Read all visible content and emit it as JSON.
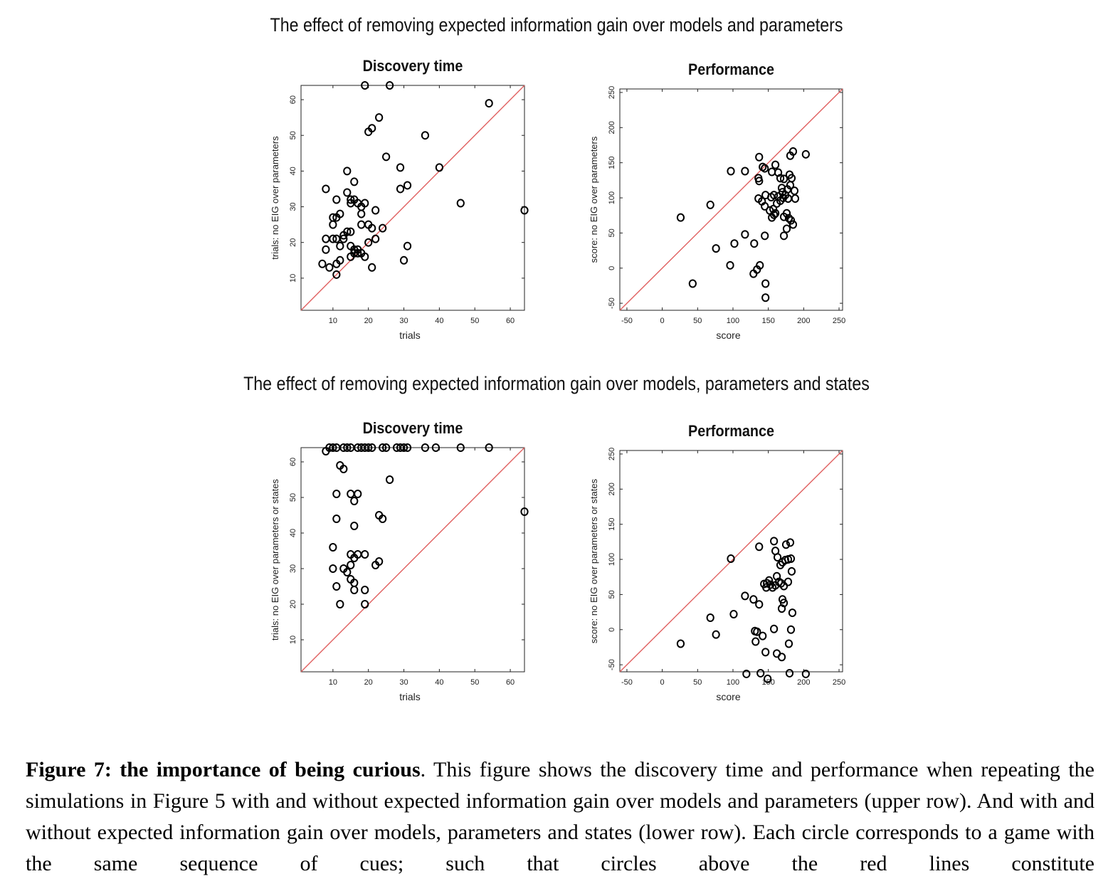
{
  "figure": {
    "top_title": "The effect of removing expected information gain over models and parameters",
    "bottom_title": "The effect of removing expected information gain over models, parameters and states",
    "line_color": "#e06060",
    "marker_color": "#000000"
  },
  "caption": {
    "label": "Figure 7: the importance of being curious",
    "text": ". This figure shows the discovery time and performance when repeating the simulations in Figure 5 with and without expected information gain over models and parameters (upper row). And with and without expected information gain over models, parameters and states (lower row). Each circle corresponds to a game with the same sequence of cues; such that circles above the red lines constitute"
  },
  "chart_data": [
    {
      "type": "scatter",
      "title": "Discovery time",
      "xlabel": "trials",
      "ylabel": "trials: no EIG over parameters",
      "xlim": [
        1,
        64
      ],
      "ylim": [
        1,
        64
      ],
      "xticks": [
        10,
        20,
        30,
        40,
        50,
        60
      ],
      "yticks": [
        10,
        20,
        30,
        40,
        50,
        60
      ],
      "reference_line": "y = x",
      "points": [
        [
          19,
          64
        ],
        [
          26,
          64
        ],
        [
          54,
          59
        ],
        [
          23,
          55
        ],
        [
          20,
          51
        ],
        [
          21,
          52
        ],
        [
          36,
          50
        ],
        [
          25,
          44
        ],
        [
          29,
          41
        ],
        [
          40,
          41
        ],
        [
          14,
          40
        ],
        [
          16,
          37
        ],
        [
          8,
          35
        ],
        [
          29,
          35
        ],
        [
          31,
          36
        ],
        [
          14,
          34
        ],
        [
          11,
          32
        ],
        [
          15,
          32
        ],
        [
          16,
          32
        ],
        [
          17,
          31
        ],
        [
          15,
          31
        ],
        [
          18,
          30
        ],
        [
          19,
          31
        ],
        [
          46,
          31
        ],
        [
          64,
          29
        ],
        [
          12,
          28
        ],
        [
          10,
          27
        ],
        [
          11,
          27
        ],
        [
          10,
          25
        ],
        [
          18,
          28
        ],
        [
          22,
          29
        ],
        [
          13,
          21
        ],
        [
          13,
          22
        ],
        [
          14,
          23
        ],
        [
          15,
          23
        ],
        [
          18,
          25
        ],
        [
          20,
          25
        ],
        [
          21,
          24
        ],
        [
          24,
          24
        ],
        [
          8,
          21
        ],
        [
          10,
          21
        ],
        [
          11,
          21
        ],
        [
          12,
          19
        ],
        [
          8,
          18
        ],
        [
          15,
          19
        ],
        [
          16,
          18
        ],
        [
          16,
          17
        ],
        [
          17,
          18
        ],
        [
          18,
          17
        ],
        [
          17,
          17
        ],
        [
          19,
          16
        ],
        [
          20,
          20
        ],
        [
          22,
          21
        ],
        [
          31,
          19
        ],
        [
          15,
          16
        ],
        [
          12,
          15
        ],
        [
          11,
          14
        ],
        [
          7,
          14
        ],
        [
          9,
          13
        ],
        [
          11,
          11
        ],
        [
          21,
          13
        ],
        [
          30,
          15
        ]
      ]
    },
    {
      "type": "scatter",
      "title": "Performance",
      "xlabel": "score",
      "ylabel": "score: no EIG over parameters",
      "xlim": [
        -60,
        255
      ],
      "ylim": [
        -60,
        255
      ],
      "xticks": [
        -50,
        0,
        50,
        100,
        150,
        200,
        250
      ],
      "yticks": [
        -50,
        0,
        50,
        100,
        150,
        200,
        250
      ],
      "reference_line": "y = x",
      "points": [
        [
          26,
          72
        ],
        [
          68,
          90
        ],
        [
          97,
          138
        ],
        [
          117,
          138
        ],
        [
          136,
          128
        ],
        [
          137,
          124
        ],
        [
          137,
          158
        ],
        [
          142,
          144
        ],
        [
          145,
          142
        ],
        [
          155,
          137
        ],
        [
          160,
          147
        ],
        [
          164,
          136
        ],
        [
          167,
          128
        ],
        [
          172,
          127
        ],
        [
          180,
          133
        ],
        [
          183,
          128
        ],
        [
          181,
          118
        ],
        [
          187,
          110
        ],
        [
          177,
          112
        ],
        [
          169,
          114
        ],
        [
          170,
          108
        ],
        [
          164,
          102
        ],
        [
          158,
          104
        ],
        [
          154,
          101
        ],
        [
          146,
          104
        ],
        [
          136,
          99
        ],
        [
          141,
          95
        ],
        [
          145,
          88
        ],
        [
          152,
          82
        ],
        [
          157,
          84
        ],
        [
          160,
          78
        ],
        [
          162,
          92
        ],
        [
          167,
          96
        ],
        [
          171,
          100
        ],
        [
          174,
          104
        ],
        [
          178,
          99
        ],
        [
          188,
          99
        ],
        [
          176,
          78
        ],
        [
          172,
          73
        ],
        [
          179,
          71
        ],
        [
          182,
          68
        ],
        [
          185,
          62
        ],
        [
          176,
          56
        ],
        [
          172,
          46
        ],
        [
          145,
          46
        ],
        [
          117,
          48
        ],
        [
          102,
          35
        ],
        [
          76,
          28
        ],
        [
          96,
          4
        ],
        [
          130,
          35
        ],
        [
          138,
          4
        ],
        [
          134,
          -2
        ],
        [
          129,
          -8
        ],
        [
          146,
          -22
        ],
        [
          146,
          -42
        ],
        [
          43,
          -22
        ],
        [
          181,
          160
        ],
        [
          185,
          166
        ],
        [
          203,
          162
        ],
        [
          155,
          72
        ],
        [
          158,
          76
        ]
      ]
    },
    {
      "type": "scatter",
      "title": "Discovery time",
      "xlabel": "trials",
      "ylabel": "trials: no EIG over parameters or states",
      "xlim": [
        1,
        64
      ],
      "ylim": [
        1,
        64
      ],
      "xticks": [
        10,
        20,
        30,
        40,
        50,
        60
      ],
      "yticks": [
        10,
        20,
        30,
        40,
        50,
        60
      ],
      "reference_line": "y = x",
      "points": [
        [
          8,
          63
        ],
        [
          9,
          64
        ],
        [
          10,
          64
        ],
        [
          11,
          64
        ],
        [
          13,
          64
        ],
        [
          14,
          64
        ],
        [
          15,
          64
        ],
        [
          17,
          64
        ],
        [
          18,
          64
        ],
        [
          19,
          64
        ],
        [
          20,
          64
        ],
        [
          21,
          64
        ],
        [
          24,
          64
        ],
        [
          25,
          64
        ],
        [
          28,
          64
        ],
        [
          29,
          64
        ],
        [
          30,
          64
        ],
        [
          31,
          64
        ],
        [
          36,
          64
        ],
        [
          39,
          64
        ],
        [
          46,
          64
        ],
        [
          54,
          64
        ],
        [
          12,
          59
        ],
        [
          13,
          58
        ],
        [
          26,
          55
        ],
        [
          11,
          51
        ],
        [
          15,
          51
        ],
        [
          17,
          51
        ],
        [
          16,
          49
        ],
        [
          11,
          44
        ],
        [
          23,
          45
        ],
        [
          24,
          44
        ],
        [
          16,
          42
        ],
        [
          64,
          46
        ],
        [
          10,
          36
        ],
        [
          15,
          34
        ],
        [
          17,
          34
        ],
        [
          19,
          34
        ],
        [
          16,
          33
        ],
        [
          15,
          31
        ],
        [
          23,
          32
        ],
        [
          22,
          31
        ],
        [
          10,
          30
        ],
        [
          13,
          30
        ],
        [
          14,
          29
        ],
        [
          15,
          27
        ],
        [
          16,
          26
        ],
        [
          16,
          24
        ],
        [
          19,
          24
        ],
        [
          11,
          25
        ],
        [
          12,
          20
        ],
        [
          19,
          20
        ]
      ]
    },
    {
      "type": "scatter",
      "title": "Performance",
      "xlabel": "score",
      "ylabel": "score: no EIG over parameters or states",
      "xlim": [
        -60,
        255
      ],
      "ylim": [
        -60,
        255
      ],
      "xticks": [
        -50,
        0,
        50,
        100,
        150,
        200,
        250
      ],
      "yticks": [
        -50,
        0,
        50,
        100,
        150,
        200,
        250
      ],
      "reference_line": "y = x",
      "points": [
        [
          26,
          -20
        ],
        [
          68,
          17
        ],
        [
          76,
          -7
        ],
        [
          97,
          101
        ],
        [
          101,
          22
        ],
        [
          117,
          48
        ],
        [
          129,
          43
        ],
        [
          137,
          36
        ],
        [
          137,
          118
        ],
        [
          144,
          65
        ],
        [
          147,
          60
        ],
        [
          148,
          66
        ],
        [
          151,
          70
        ],
        [
          153,
          64
        ],
        [
          156,
          60
        ],
        [
          160,
          63
        ],
        [
          162,
          76
        ],
        [
          165,
          68
        ],
        [
          168,
          66
        ],
        [
          172,
          62
        ],
        [
          178,
          68
        ],
        [
          158,
          126
        ],
        [
          160,
          112
        ],
        [
          163,
          103
        ],
        [
          167,
          92
        ],
        [
          170,
          96
        ],
        [
          174,
          99
        ],
        [
          178,
          100
        ],
        [
          182,
          101
        ],
        [
          181,
          124
        ],
        [
          175,
          121
        ],
        [
          183,
          83
        ],
        [
          170,
          43
        ],
        [
          172,
          38
        ],
        [
          169,
          30
        ],
        [
          184,
          24
        ],
        [
          131,
          -2
        ],
        [
          134,
          -3
        ],
        [
          132,
          -17
        ],
        [
          142,
          -9
        ],
        [
          158,
          1
        ],
        [
          182,
          0
        ],
        [
          146,
          -32
        ],
        [
          162,
          -34
        ],
        [
          169,
          -39
        ],
        [
          179,
          -20
        ],
        [
          139,
          -62
        ],
        [
          119,
          -63
        ],
        [
          180,
          -62
        ],
        [
          203,
          -63
        ],
        [
          149,
          -70
        ]
      ]
    }
  ]
}
